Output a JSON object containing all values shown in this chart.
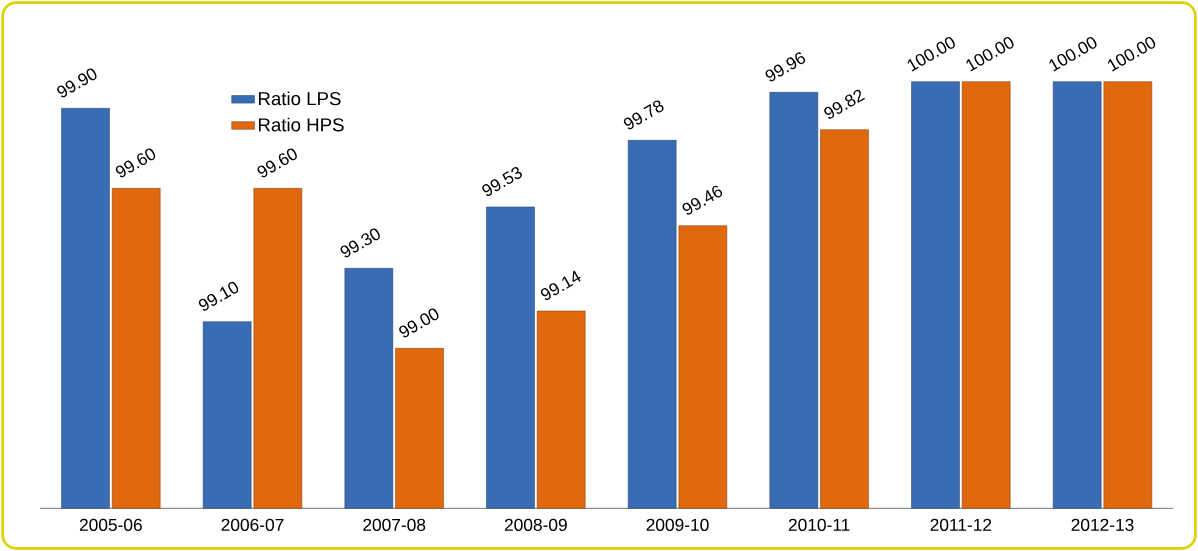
{
  "chart_data": {
    "type": "bar",
    "categories": [
      "2005-06",
      "2006-07",
      "2007-08",
      "2008-09",
      "2009-10",
      "2010-11",
      "2011-12",
      "2012-13"
    ],
    "series": [
      {
        "name": "Ratio LPS",
        "color": "#3a6cb4",
        "values": [
          99.9,
          99.1,
          99.3,
          99.53,
          99.78,
          99.96,
          100.0,
          100.0
        ],
        "value_labels": [
          "99.90",
          "99.10",
          "99.30",
          "99.53",
          "99.78",
          "99.96",
          "100.00",
          "100.00"
        ]
      },
      {
        "name": "Ratio HPS",
        "color": "#e0680f",
        "values": [
          99.6,
          99.6,
          99.0,
          99.14,
          99.46,
          99.82,
          100.0,
          100.0
        ],
        "value_labels": [
          "99.60",
          "99.60",
          "99.00",
          "99.14",
          "99.46",
          "99.82",
          "100.00",
          "100.00"
        ]
      }
    ],
    "ylim": [
      98.4,
      100
    ],
    "tick_labels": "x",
    "legend": "top left"
  }
}
